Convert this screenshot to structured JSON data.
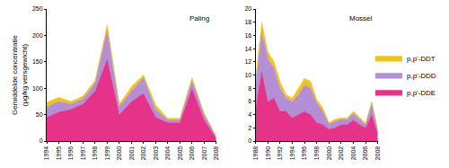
{
  "chart_data": [
    {
      "type": "area",
      "title": "Paling",
      "stacked": true,
      "grid": false,
      "ylabel": "Gemiddelde concentratie (µg/kg versgewicht)",
      "x": [
        1994,
        1995,
        1996,
        1997,
        1998,
        1999,
        2000,
        2001,
        2002,
        2003,
        2004,
        2005,
        2006,
        2007,
        2008
      ],
      "xlim": [
        1994,
        2008
      ],
      "xticks": [
        1994,
        1995,
        1996,
        1997,
        1998,
        1999,
        2000,
        2001,
        2002,
        2003,
        2004,
        2005,
        2006,
        2007,
        2008
      ],
      "ylim": [
        0,
        250
      ],
      "yticks": [
        0,
        50,
        100,
        150,
        200,
        250
      ],
      "series": [
        {
          "name": "p,p'-DDE",
          "color": "#e6338a",
          "values": [
            45,
            55,
            60,
            70,
            95,
            155,
            50,
            75,
            90,
            45,
            35,
            35,
            100,
            40,
            5
          ]
        },
        {
          "name": "p,p'-DDD",
          "color": "#b48fd6",
          "values": [
            20,
            20,
            10,
            10,
            15,
            55,
            15,
            20,
            30,
            15,
            5,
            5,
            15,
            10,
            3
          ]
        },
        {
          "name": "p,p'-DDT",
          "color": "#f2c21f",
          "values": [
            8,
            8,
            5,
            5,
            5,
            10,
            5,
            8,
            5,
            8,
            3,
            3,
            5,
            3,
            1
          ]
        }
      ]
    },
    {
      "type": "area",
      "title": "Mossel",
      "stacked": true,
      "grid": false,
      "legend": "right",
      "x": [
        1988,
        1989,
        1990,
        1991,
        1992,
        1993,
        1994,
        1995,
        1996,
        1997,
        1998,
        1999,
        2000,
        2001,
        2002,
        2003,
        2004,
        2005,
        2006,
        2007,
        2008
      ],
      "xlim": [
        1988,
        2008
      ],
      "xticks": [
        1988,
        1990,
        1992,
        1994,
        1996,
        1998,
        2000,
        2002,
        2004,
        2006,
        2008
      ],
      "ylim": [
        0,
        20
      ],
      "yticks": [
        0,
        2,
        4,
        6,
        8,
        10,
        12,
        14,
        16,
        18,
        20
      ],
      "series": [
        {
          "name": "p,p'-DDE",
          "color": "#e6338a",
          "values": [
            5,
            10.5,
            6,
            6.5,
            4.5,
            4.5,
            3.5,
            4,
            4.5,
            4,
            2.8,
            2.5,
            1.8,
            2,
            2.5,
            2.5,
            3.2,
            2.5,
            2,
            4,
            1
          ]
        },
        {
          "name": "p,p'-DDD",
          "color": "#b48fd6",
          "values": [
            3.5,
            6,
            6.5,
            4.5,
            3.5,
            2,
            2.5,
            3,
            4,
            4,
            3,
            2,
            0.8,
            1,
            0.8,
            0.8,
            1,
            0.8,
            0.5,
            1.7,
            0.5
          ]
        },
        {
          "name": "p,p'-DDT",
          "color": "#f2c21f",
          "values": [
            1,
            1.5,
            1,
            1,
            1,
            0.5,
            0.5,
            1,
            1,
            1,
            0.5,
            0.5,
            0.2,
            0.3,
            0.2,
            0.2,
            0.3,
            0.3,
            0.2,
            0.3,
            0.2
          ]
        }
      ]
    }
  ]
}
